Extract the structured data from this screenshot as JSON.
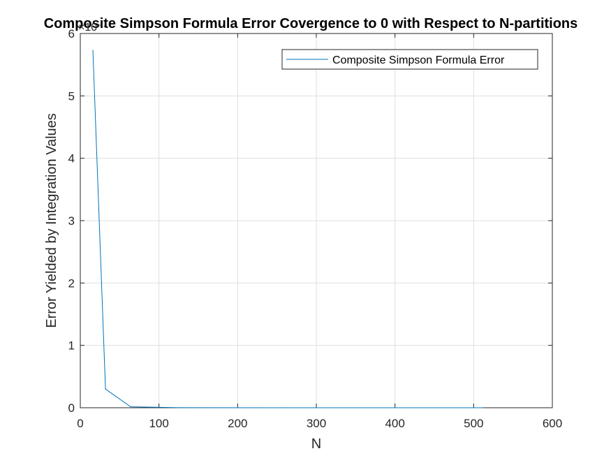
{
  "chart_data": {
    "type": "line",
    "title": "Composite Simpson Formula Error Covergence to 0 with Respect to N-partitions",
    "xlabel": "N",
    "ylabel": "Error Yielded by Integration Values",
    "y_exponent_label": "×10⁻⁴",
    "xlim": [
      0,
      600
    ],
    "ylim": [
      0,
      6
    ],
    "xticks": [
      0,
      100,
      200,
      300,
      400,
      500,
      600
    ],
    "yticks": [
      0,
      1,
      2,
      3,
      4,
      5,
      6
    ],
    "grid": true,
    "legend_location": "top-right",
    "series": [
      {
        "name": "Composite Simpson Formula Error",
        "color": "#0072BD",
        "x": [
          16,
          32,
          64,
          128,
          256,
          512
        ],
        "y": [
          5.73,
          0.3,
          0.015,
          0.001,
          0.0001,
          1e-05
        ]
      }
    ]
  }
}
